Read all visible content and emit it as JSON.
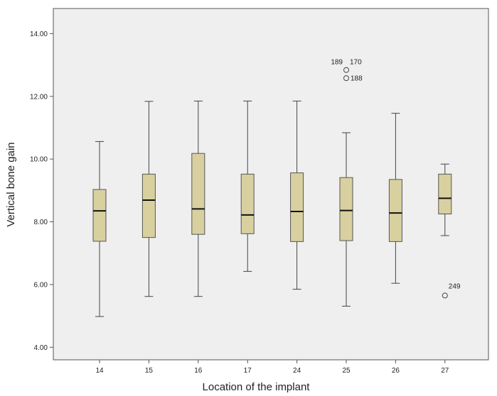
{
  "chart_data": {
    "type": "boxplot",
    "xlabel": "Location of the implant",
    "ylabel": "Vertical bone gain",
    "ylim": [
      3.6,
      14.8
    ],
    "yticks": [
      "4.00",
      "6.00",
      "8.00",
      "10.00",
      "12.00",
      "14.00"
    ],
    "ytick_values": [
      4,
      6,
      8,
      10,
      12,
      14
    ],
    "grid": false,
    "categories": [
      "14",
      "15",
      "16",
      "17",
      "24",
      "25",
      "26",
      "27"
    ],
    "boxes": [
      {
        "category": "14",
        "min": 4.98,
        "q1": 7.38,
        "median": 8.35,
        "q3": 9.03,
        "max": 10.56
      },
      {
        "category": "15",
        "min": 5.62,
        "q1": 7.5,
        "median": 8.69,
        "q3": 9.52,
        "max": 11.84
      },
      {
        "category": "16",
        "min": 5.62,
        "q1": 7.6,
        "median": 8.41,
        "q3": 10.18,
        "max": 11.85
      },
      {
        "category": "17",
        "min": 6.42,
        "q1": 7.62,
        "median": 8.22,
        "q3": 9.52,
        "max": 11.85
      },
      {
        "category": "24",
        "min": 5.85,
        "q1": 7.37,
        "median": 8.33,
        "q3": 9.56,
        "max": 11.85
      },
      {
        "category": "25",
        "min": 5.31,
        "q1": 7.4,
        "median": 8.36,
        "q3": 9.41,
        "max": 10.84
      },
      {
        "category": "26",
        "min": 6.04,
        "q1": 7.37,
        "median": 8.28,
        "q3": 9.35,
        "max": 11.46
      },
      {
        "category": "27",
        "min": 7.56,
        "q1": 8.25,
        "median": 8.75,
        "q3": 9.52,
        "max": 9.84
      }
    ],
    "outliers": [
      {
        "category": "25",
        "value": 12.84,
        "label": "189",
        "label_pos": "left"
      },
      {
        "category": "25",
        "value": 12.84,
        "label": "170",
        "label_pos": "right"
      },
      {
        "category": "25",
        "value": 12.58,
        "label": "188",
        "label_pos": "right"
      },
      {
        "category": "27",
        "value": 5.65,
        "label": "249",
        "label_pos": "upper-right"
      }
    ],
    "colors": {
      "plot_background": "#efefef",
      "box_fill": "#d9d0a0",
      "box_stroke": "#555555",
      "median": "#111111",
      "whisker": "#444444",
      "frame": "#555555"
    }
  }
}
